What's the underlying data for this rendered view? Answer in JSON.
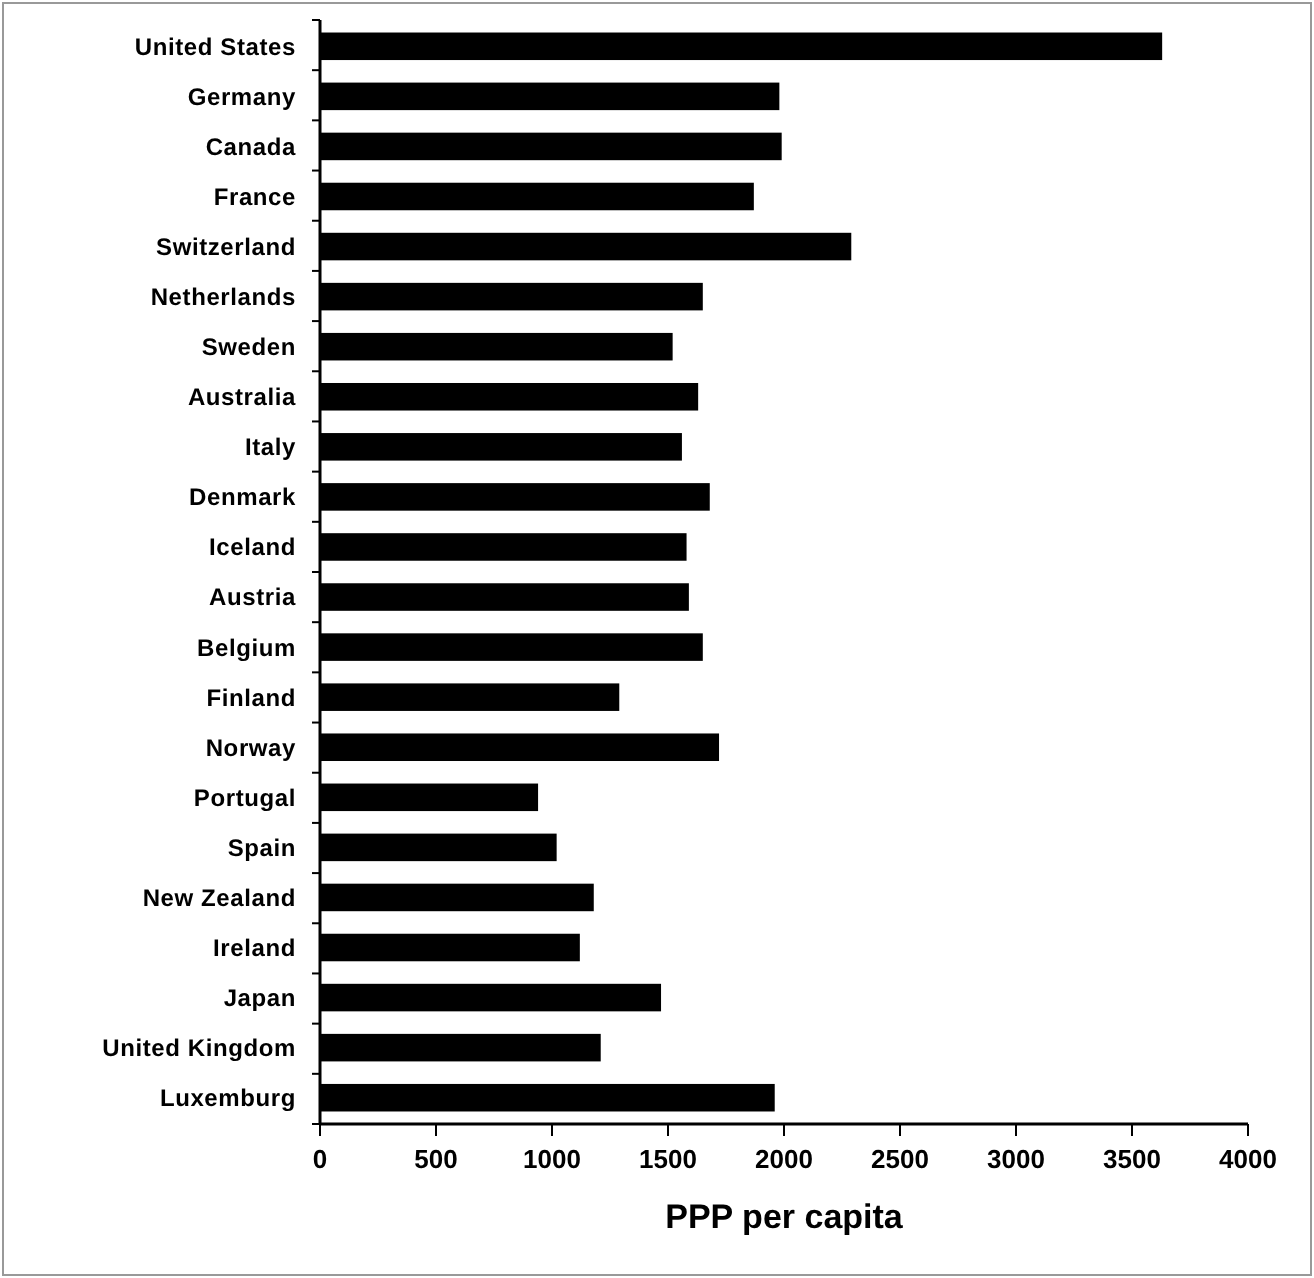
{
  "chart_data": {
    "type": "bar",
    "orientation": "horizontal",
    "xlabel": "PPP per capita",
    "categories": [
      "United States",
      "Germany",
      "Canada",
      "France",
      "Switzerland",
      "Netherlands",
      "Sweden",
      "Australia",
      "Italy",
      "Denmark",
      "Iceland",
      "Austria",
      "Belgium",
      "Finland",
      "Norway",
      "Portugal",
      "Spain",
      "New Zealand",
      "Ireland",
      "Japan",
      "United Kingdom",
      "Luxemburg"
    ],
    "values": [
      3630,
      1980,
      1990,
      1870,
      2290,
      1650,
      1520,
      1630,
      1560,
      1680,
      1580,
      1590,
      1650,
      1290,
      1720,
      940,
      1020,
      1180,
      1120,
      1470,
      1210,
      1960
    ],
    "color": "#000000",
    "xlim": [
      0,
      4000
    ],
    "xticks": [
      0,
      500,
      1000,
      1500,
      2000,
      2500,
      3000,
      3500,
      4000
    ]
  }
}
